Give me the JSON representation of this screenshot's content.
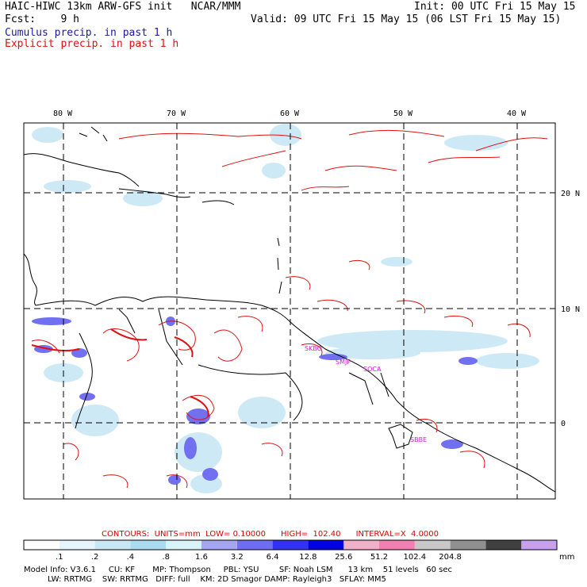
{
  "header": {
    "title": "HAIC-HIWC 13km ARW-GFS init   NCAR/MMM",
    "init": "Init: 00 UTC Fri 15 May 15",
    "fcst": "Fcst:    9 h",
    "valid": "Valid: 09 UTC Fri 15 May 15 (06 LST Fri 15 May 15)",
    "cumulus": "Cumulus precip. in past 1 h",
    "explicit": "Explicit precip. in past 1 h"
  },
  "colors": {
    "cumulus": "#1a1a9e",
    "explicit": "#e01010",
    "contour": "#e01010",
    "city": "#d020d0"
  },
  "map": {
    "lon_labels": [
      "80 W",
      "70 W",
      "60 W",
      "50 W",
      "40 W"
    ],
    "lat_labels": [
      "20 N",
      "10 N",
      "0"
    ],
    "cities": [
      "SKBO",
      "SMJP",
      "SOCA",
      "SBBE"
    ]
  },
  "contours_line": {
    "label": "CONTOURS:  UNITS=mm  LOW= 0.10000      HIGH=  102.40      INTERVAL=X  4.0000"
  },
  "colorbar": {
    "ticks": [
      ".1",
      ".2",
      ".4",
      ".8",
      "1.6",
      "3.2",
      "6.4",
      "12.8",
      "25.6",
      "51.2",
      "102.4",
      "204.8"
    ],
    "units": "mm",
    "colors": [
      "#ffffff",
      "#e6f4fb",
      "#c8e7f5",
      "#a8dcee",
      "#d8f4f8",
      "#a6a6f0",
      "#6e6ef5",
      "#3232f5",
      "#0000e0",
      "#f0b0c8",
      "#f080b0",
      "#c8c8c8",
      "#909090",
      "#404040",
      "#c8a0f0"
    ]
  },
  "footer": {
    "line1": "Model Info: V3.6.1     CU: KF       MP: Thompson     PBL: YSU        SF: Noah LSM      13 km    51 levels   60 sec",
    "line2": "LW: RRTMG    SW: RRTMG   DIFF: full    KM: 2D Smagor DAMP: Rayleigh3   SFLAY: MM5"
  }
}
